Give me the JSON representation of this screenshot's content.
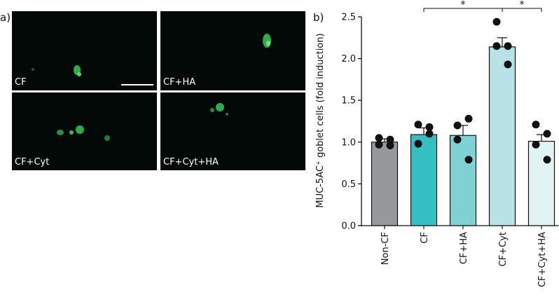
{
  "panel_a": {
    "label": "a)",
    "images": [
      {
        "caption": "CF"
      },
      {
        "caption": "CF+HA"
      },
      {
        "caption": "CF+Cyt"
      },
      {
        "caption": "CF+Cyt+HA"
      }
    ],
    "fluorescence_color": "#3fcf5a"
  },
  "panel_b": {
    "label": "b)"
  },
  "chart_data": {
    "type": "bar",
    "categories": [
      "Non-CF",
      "CF",
      "CF+HA",
      "CF+Cyt",
      "CF+Cyt+HA"
    ],
    "values": [
      1.0,
      1.09,
      1.08,
      2.14,
      1.01
    ],
    "error": [
      0.04,
      0.08,
      0.12,
      0.11,
      0.08
    ],
    "points": [
      [
        1.05,
        1.03,
        0.97,
        0.96
      ],
      [
        1.21,
        1.18,
        0.98,
        1.1
      ],
      [
        1.2,
        1.28,
        1.03,
        0.79
      ],
      [
        2.44,
        2.15,
        2.15,
        1.93
      ],
      [
        1.21,
        1.1,
        0.97,
        0.79
      ]
    ],
    "colors": [
      "#96989a",
      "#36bfc2",
      "#7fd1d4",
      "#b8e2e6",
      "#e2f3f4"
    ],
    "ylabel": "MUC-5AC⁺ goblet cells (fold induction)",
    "ylim": [
      0,
      2.5
    ],
    "yticks": [
      "0.0",
      "0.5",
      "1.0",
      "1.5",
      "2.0",
      "2.5"
    ],
    "significance": [
      {
        "from": "CF",
        "to": "CF+Cyt",
        "label": "*"
      },
      {
        "from": "CF+Cyt",
        "to": "CF+Cyt+HA",
        "label": "*"
      }
    ],
    "grid": false,
    "legend": "none"
  }
}
